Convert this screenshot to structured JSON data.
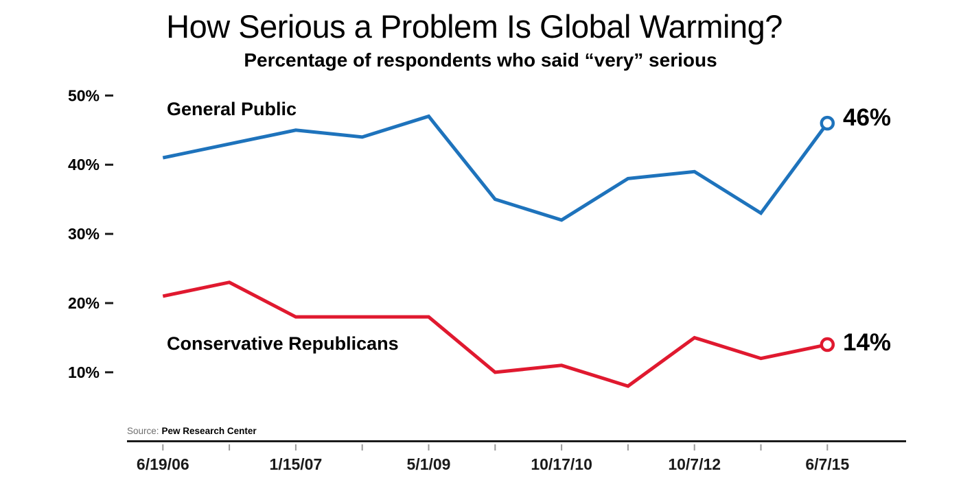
{
  "title": "How Serious a Problem Is Global Warming?",
  "subtitle": "Percentage of respondents who said “very” serious",
  "source": {
    "prefix": "Source:",
    "name": "Pew Research Center"
  },
  "colors": {
    "general_public": "#1E73BC",
    "conservative_republicans": "#E0192F",
    "axis": "#1A1A1A",
    "minor_tick": "#9A9A9A",
    "text": "#000000",
    "source_prefix_text": "#6E6E6E",
    "background": "#FFFFFF"
  },
  "chart_data": {
    "type": "line",
    "title": "How Serious a Problem Is Global Warming?",
    "subtitle": "Percentage of respondents who said “very” serious",
    "xlabel": "",
    "ylabel": "",
    "grid": false,
    "legend_position": "labels-on-chart",
    "y_axis": {
      "tick_labels": [
        "50%",
        "40%",
        "30%",
        "20%",
        "10%"
      ],
      "tick_values": [
        50,
        40,
        30,
        20,
        10
      ],
      "range_shown": [
        5,
        52
      ]
    },
    "x_axis": {
      "minor_tick_count": 11,
      "labels": [
        {
          "text": "6/19/06",
          "tick": 1
        },
        {
          "text": "1/15/07",
          "tick": 3
        },
        {
          "text": "5/1/09",
          "tick": 5
        },
        {
          "text": "10/17/10",
          "tick": 7
        },
        {
          "text": "10/7/12",
          "tick": 9
        },
        {
          "text": "6/7/15",
          "tick": 11
        }
      ]
    },
    "series": [
      {
        "name": "General Public",
        "color": "#1E73BC",
        "end_label": "46%",
        "points": [
          {
            "tick": 1,
            "value": 41
          },
          {
            "tick": 3,
            "value": 45
          },
          {
            "tick": 4,
            "value": 44
          },
          {
            "tick": 5,
            "value": 47
          },
          {
            "tick": 6,
            "value": 35
          },
          {
            "tick": 7,
            "value": 32
          },
          {
            "tick": 8,
            "value": 38
          },
          {
            "tick": 9,
            "value": 39
          },
          {
            "tick": 10,
            "value": 33
          },
          {
            "tick": 11,
            "value": 46
          }
        ]
      },
      {
        "name": "Conservative Republicans",
        "color": "#E0192F",
        "end_label": "14%",
        "points": [
          {
            "tick": 1,
            "value": 21
          },
          {
            "tick": 2,
            "value": 23
          },
          {
            "tick": 3,
            "value": 18
          },
          {
            "tick": 4,
            "value": 18
          },
          {
            "tick": 5,
            "value": 18
          },
          {
            "tick": 6,
            "value": 10
          },
          {
            "tick": 7,
            "value": 11
          },
          {
            "tick": 8,
            "value": 8
          },
          {
            "tick": 9,
            "value": 15
          },
          {
            "tick": 10,
            "value": 12
          },
          {
            "tick": 11,
            "value": 14
          }
        ]
      }
    ]
  }
}
